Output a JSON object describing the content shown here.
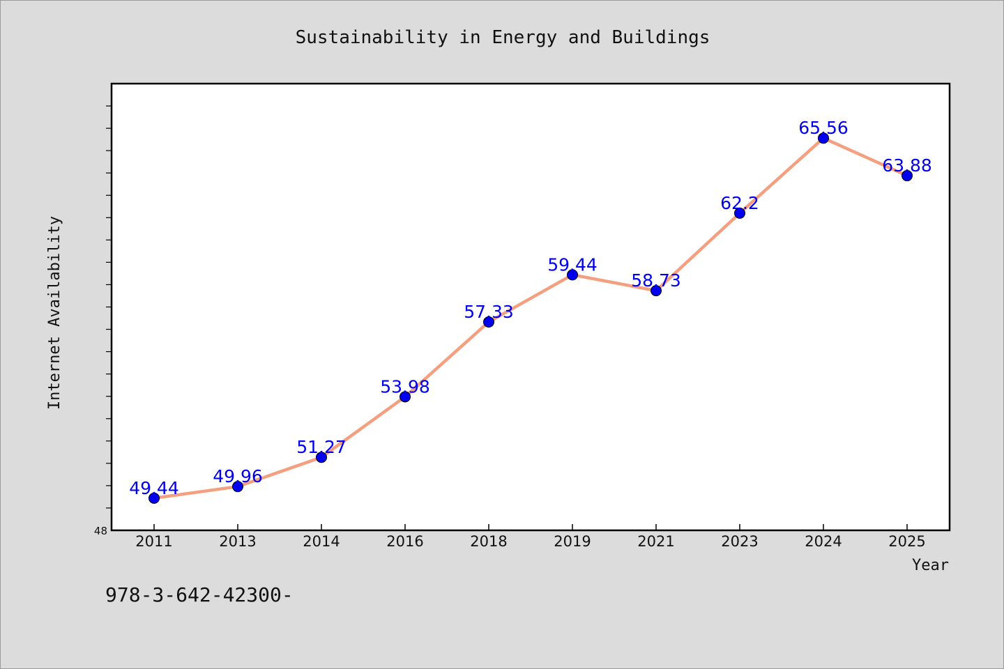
{
  "chart_data": {
    "type": "line",
    "title": "Sustainability in Energy and Buildings",
    "xlabel": "Year",
    "ylabel": "Internet Availability",
    "categories": [
      "2011",
      "2013",
      "2014",
      "2016",
      "2018",
      "2019",
      "2021",
      "2023",
      "2024",
      "2025"
    ],
    "series": [
      {
        "values": [
          49.44,
          49.96,
          51.27,
          53.98,
          57.33,
          59.44,
          58.73,
          62.2,
          65.56,
          63.88
        ],
        "labels": [
          "49.44",
          "49.96",
          "51.27",
          "53.98",
          "57.33",
          "59.44",
          "58.73",
          "62.2",
          "65.56",
          "63.88"
        ]
      }
    ],
    "ylim": [
      48,
      68
    ],
    "y_tick_labels_shown": [
      "48"
    ],
    "grid": false,
    "legend": "none",
    "colors": {
      "line": "#f4a080",
      "marker": "#0000ee",
      "data_label": "#0000ee",
      "background": "#dcdcdc",
      "plot_area": "#ffffff"
    }
  },
  "footnote": "978-3-642-42300-"
}
